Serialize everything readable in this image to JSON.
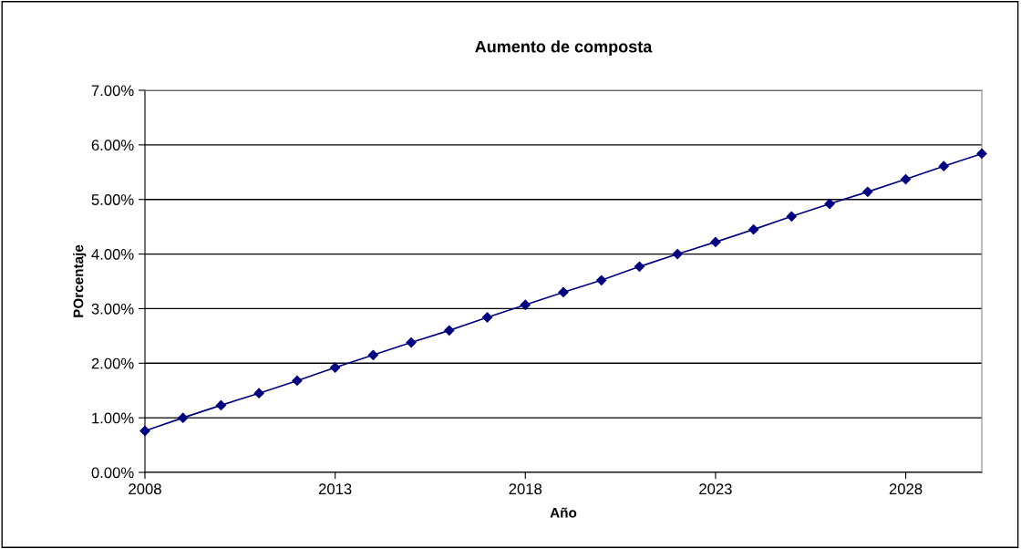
{
  "chart_data": {
    "type": "line",
    "title": "Aumento de composta",
    "xlabel": "Año",
    "ylabel": "POrcentaje",
    "x": [
      2008,
      2009,
      2010,
      2011,
      2012,
      2013,
      2014,
      2015,
      2016,
      2017,
      2018,
      2019,
      2020,
      2021,
      2022,
      2023,
      2024,
      2025,
      2026,
      2027,
      2028,
      2029,
      2030
    ],
    "series": [
      {
        "color": "#000080",
        "values": [
          0.76,
          1.0,
          1.23,
          1.45,
          1.68,
          1.92,
          2.15,
          2.38,
          2.6,
          2.84,
          3.07,
          3.3,
          3.52,
          3.77,
          4.0,
          4.22,
          4.45,
          4.69,
          4.92,
          5.14,
          5.37,
          5.61,
          5.84
        ]
      }
    ],
    "xlim": [
      2008,
      2030
    ],
    "xticks": [
      2008,
      2013,
      2018,
      2023,
      2028
    ],
    "ylim": [
      0,
      7
    ],
    "yticks": [
      {
        "value": 0,
        "label": "0.00%"
      },
      {
        "value": 1,
        "label": "1.00%"
      },
      {
        "value": 2,
        "label": "2.00%"
      },
      {
        "value": 3,
        "label": "3.00%"
      },
      {
        "value": 4,
        "label": "4.00%"
      },
      {
        "value": 5,
        "label": "5.00%"
      },
      {
        "value": 6,
        "label": "6.00%"
      },
      {
        "value": 7,
        "label": "7.00%"
      }
    ],
    "grid": "y",
    "marker": "diamond",
    "line_style": "solid"
  }
}
